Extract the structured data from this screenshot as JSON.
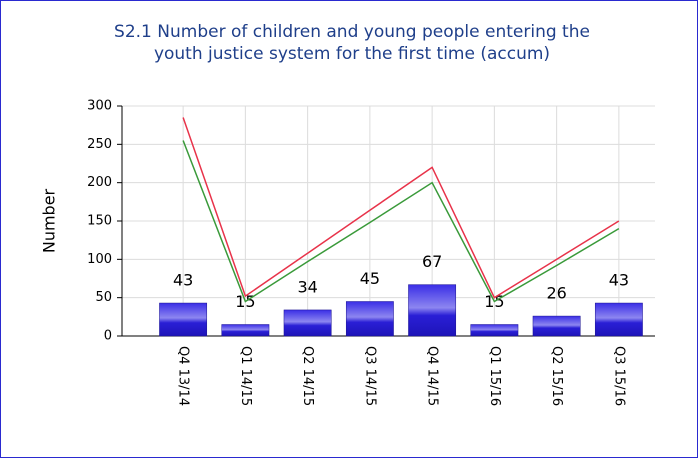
{
  "chart_data": {
    "type": "bar",
    "title": "S2.1 Number of children and young people entering the",
    "subtitle": "youth justice system for the first time (accum)",
    "y_label": "Number",
    "categories": [
      "Q4 13/14",
      "Q1 14/15",
      "Q2 14/15",
      "Q3 14/15",
      "Q4 14/15",
      "Q1 15/16",
      "Q2 15/16",
      "Q3 15/16"
    ],
    "values": [
      43,
      15,
      34,
      45,
      67,
      15,
      26,
      43
    ],
    "color": "#2a1fd6",
    "lines": [
      {
        "color": "#e8334a",
        "values": [
          285,
          52,
          108,
          164,
          220,
          50,
          100,
          150
        ]
      },
      {
        "color": "#3a9a3a",
        "values": [
          255,
          45,
          97,
          148,
          200,
          45,
          92,
          140
        ]
      }
    ],
    "ylim": [
      0,
      300
    ],
    "yticks": [
      0,
      50,
      100,
      150,
      200,
      250,
      300
    ],
    "grid": true
  }
}
